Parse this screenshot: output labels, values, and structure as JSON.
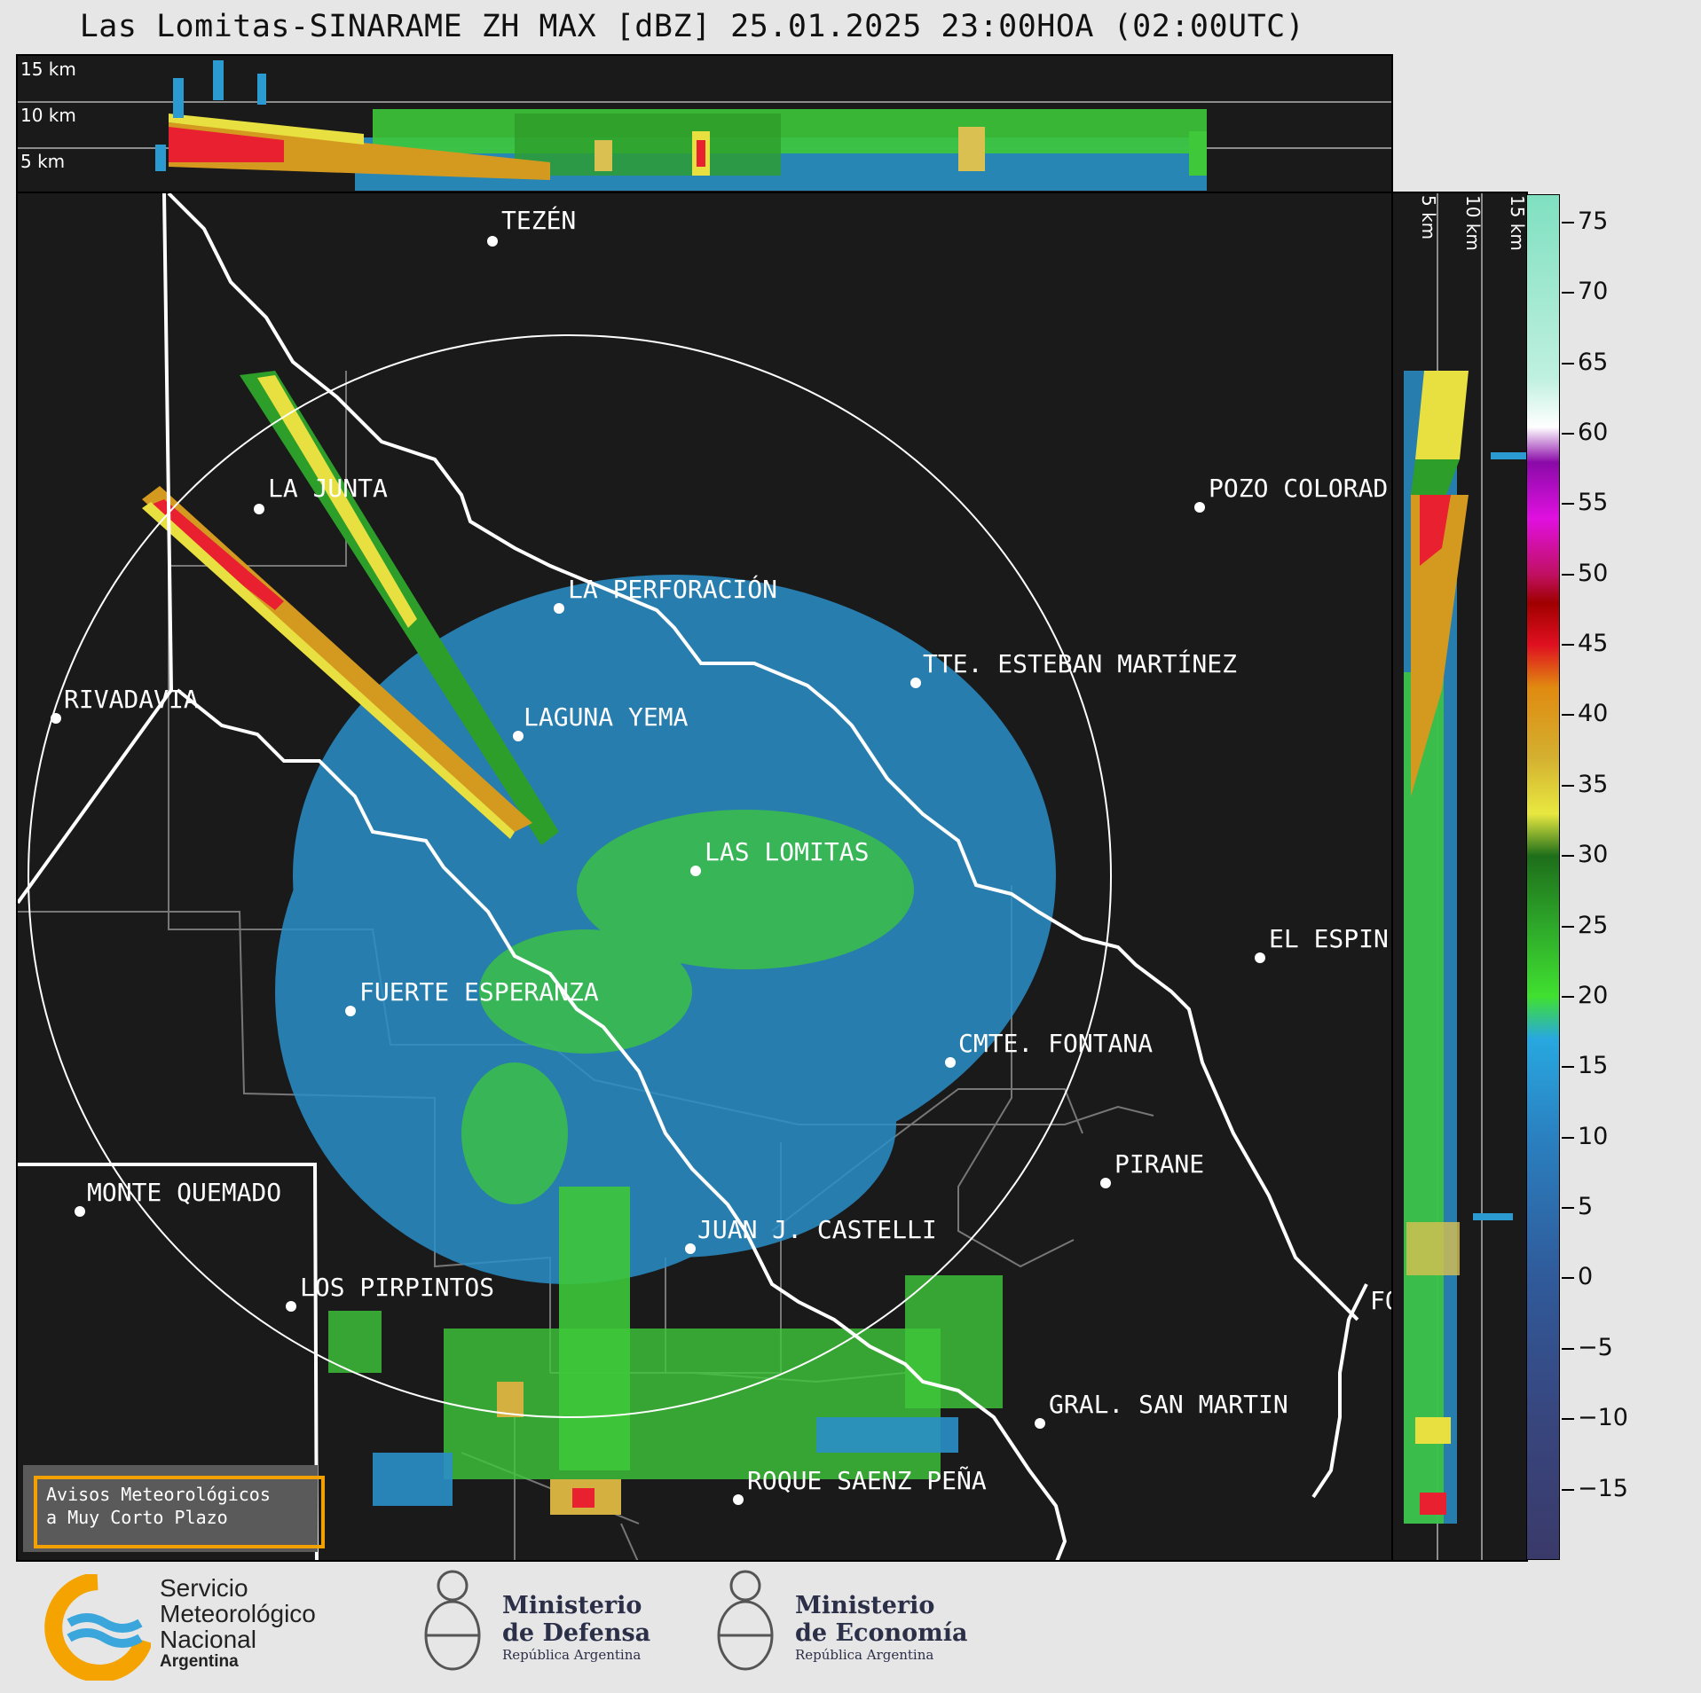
{
  "title": "Las Lomitas-SINARAME ZH MAX [dBZ] 25.01.2025 23:00HOA (02:00UTC)",
  "top_altitudes": [
    "15 km",
    "10 km",
    "5 km"
  ],
  "right_altitudes": [
    "5 km",
    "10 km",
    "15 km"
  ],
  "cities": [
    {
      "name": "TEZÉN"
    },
    {
      "name": "LA JUNTA"
    },
    {
      "name": "POZO COLORAD"
    },
    {
      "name": "LA PERFORACIÓN"
    },
    {
      "name": "TTE. ESTEBAN MARTÍNEZ"
    },
    {
      "name": "RIVADAVIA"
    },
    {
      "name": "LAGUNA YEMA"
    },
    {
      "name": "LAS LOMITAS"
    },
    {
      "name": "EL ESPIN"
    },
    {
      "name": "FUERTE ESPERANZA"
    },
    {
      "name": "CMTE. FONTANA"
    },
    {
      "name": "PIRANE"
    },
    {
      "name": "MONTE QUEMADO"
    },
    {
      "name": "JUAN J. CASTELLI"
    },
    {
      "name": "LOS PIRPINTOS"
    },
    {
      "name": "FO"
    },
    {
      "name": "GRAL. SAN MARTIN"
    },
    {
      "name": "ROQUE SAENZ PEÑA"
    }
  ],
  "colorbar": {
    "unit": "dBZ",
    "ticks": [
      "75",
      "70",
      "65",
      "60",
      "55",
      "50",
      "45",
      "40",
      "35",
      "30",
      "25",
      "20",
      "15",
      "10",
      "5",
      "0",
      "−5",
      "−10",
      "−15"
    ],
    "tick_values": [
      75,
      70,
      65,
      60,
      55,
      50,
      45,
      40,
      35,
      30,
      25,
      20,
      15,
      10,
      5,
      0,
      -5,
      -10,
      -15
    ],
    "range": [
      -20,
      77
    ]
  },
  "alert": {
    "line1": "Avisos Meteorológicos",
    "line2": "a Muy Corto Plazo"
  },
  "logos": {
    "smn": {
      "l1": "Servicio",
      "l2": "Meteorológico",
      "l3": "Nacional",
      "l4": "Argentina"
    },
    "defensa": {
      "l1": "Ministerio",
      "l2": "de Defensa",
      "l3": "República Argentina"
    },
    "economia": {
      "l1": "Ministerio",
      "l2": "de Economía",
      "l3": "República Argentina"
    }
  }
}
